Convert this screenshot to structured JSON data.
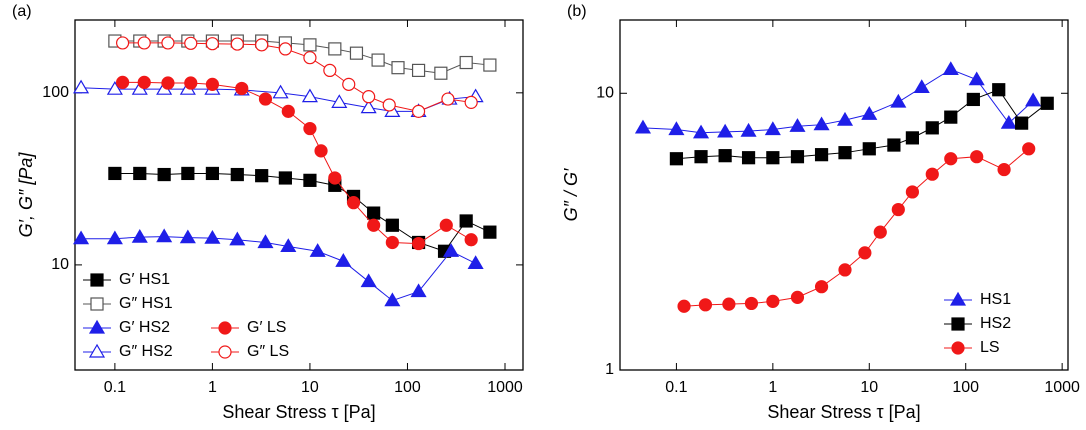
{
  "chart_data": [
    {
      "type": "line",
      "title": "(a)",
      "xlabel": "Shear Stress τ [Pa]",
      "ylabel": "G′, G″ [Pa]",
      "xscale": "log",
      "yscale": "log",
      "xlim": [
        0.039,
        1530
      ],
      "ylim": [
        2.45,
        265
      ],
      "xticks": [
        0.1,
        1,
        10,
        100,
        1000
      ],
      "yticks": [
        10,
        100
      ],
      "legend": "lower left",
      "legend_columns": 2,
      "series": [
        {
          "name": "G′ HS1",
          "color": "#000000",
          "marker": "square",
          "filled": true,
          "x": [
            0.1,
            0.18,
            0.32,
            0.56,
            1,
            1.8,
            3.2,
            5.6,
            10,
            18,
            28,
            45,
            70,
            130,
            240,
            400,
            700
          ],
          "values": [
            34,
            34,
            33.5,
            34,
            34,
            33.5,
            33,
            32,
            31,
            29,
            25,
            20,
            17,
            13.5,
            12,
            18,
            15.5
          ]
        },
        {
          "name": "G″ HS1",
          "color": "#555555",
          "marker": "square",
          "filled": false,
          "x": [
            0.1,
            0.18,
            0.32,
            0.56,
            1,
            1.8,
            3.2,
            5.6,
            10,
            18,
            30,
            50,
            80,
            130,
            220,
            400,
            700
          ],
          "values": [
            200,
            200,
            200,
            200,
            200,
            200,
            200,
            195,
            190,
            180,
            170,
            155,
            140,
            135,
            130,
            150,
            145
          ]
        },
        {
          "name": "G′ HS2",
          "color": "#1f1fe8",
          "marker": "triangle",
          "filled": true,
          "x": [
            0.045,
            0.1,
            0.18,
            0.32,
            0.56,
            1,
            1.8,
            3.5,
            6,
            12,
            22,
            40,
            70,
            130,
            280,
            500
          ],
          "values": [
            14.2,
            14.2,
            14.5,
            14.6,
            14.4,
            14.3,
            14,
            13.5,
            12.8,
            12,
            10.5,
            8,
            6.2,
            7,
            12,
            10.2
          ]
        },
        {
          "name": "G″ HS2",
          "color": "#1f1fe8",
          "marker": "triangle",
          "filled": false,
          "x": [
            0.045,
            0.1,
            0.18,
            0.32,
            0.56,
            1,
            2,
            5,
            10,
            20,
            40,
            70,
            130,
            270,
            500
          ],
          "values": [
            107,
            105,
            105,
            105,
            105,
            105,
            104,
            100,
            95,
            88,
            82,
            78,
            78,
            92,
            95
          ]
        },
        {
          "name": "G′ LS",
          "color": "#f01818",
          "marker": "circle",
          "filled": true,
          "x": [
            0.12,
            0.2,
            0.35,
            0.6,
            1,
            2,
            3.5,
            6,
            10,
            13,
            18,
            28,
            45,
            70,
            130,
            250,
            450
          ],
          "values": [
            115,
            115,
            114,
            114,
            112,
            106,
            92,
            78,
            62,
            46,
            32,
            23,
            17,
            13.5,
            13.3,
            17,
            14
          ]
        },
        {
          "name": "G″ LS",
          "color": "#f01818",
          "marker": "circle",
          "filled": false,
          "x": [
            0.12,
            0.2,
            0.35,
            0.6,
            1,
            1.8,
            3.2,
            5.6,
            10,
            16,
            25,
            40,
            65,
            130,
            260,
            450
          ],
          "values": [
            195,
            195,
            195,
            194,
            193,
            192,
            190,
            180,
            160,
            135,
            112,
            95,
            85,
            78,
            92,
            88
          ]
        }
      ]
    },
    {
      "type": "line",
      "title": "(b)",
      "xlabel": "Shear Stress τ [Pa]",
      "ylabel": "G″ / G′",
      "xscale": "log",
      "yscale": "log",
      "xlim": [
        0.026,
        1150
      ],
      "ylim": [
        1,
        18.4
      ],
      "xticks": [
        0.1,
        1,
        10,
        100,
        1000
      ],
      "yticks": [
        1,
        10
      ],
      "legend": "lower right",
      "legend_columns": 1,
      "series": [
        {
          "name": "HS1",
          "color": "#1f1fe8",
          "marker": "triangle",
          "filled": true,
          "x": [
            0.045,
            0.1,
            0.18,
            0.32,
            0.56,
            1,
            1.8,
            3.2,
            5.6,
            10,
            20,
            35,
            70,
            130,
            280,
            500
          ],
          "values": [
            7.5,
            7.4,
            7.2,
            7.25,
            7.3,
            7.4,
            7.6,
            7.7,
            8,
            8.4,
            9.3,
            10.5,
            12.2,
            11.2,
            7.8,
            9.4
          ]
        },
        {
          "name": "HS2",
          "color": "#000000",
          "marker": "square",
          "filled": true,
          "x": [
            0.1,
            0.18,
            0.32,
            0.56,
            1,
            1.8,
            3.2,
            5.6,
            10,
            18,
            28,
            45,
            70,
            120,
            220,
            380,
            700
          ],
          "values": [
            5.8,
            5.9,
            5.95,
            5.85,
            5.85,
            5.9,
            6,
            6.1,
            6.3,
            6.5,
            6.9,
            7.5,
            8.2,
            9.5,
            10.3,
            7.8,
            9.2
          ]
        },
        {
          "name": "LS",
          "color": "#f01818",
          "marker": "circle",
          "filled": true,
          "x": [
            0.12,
            0.2,
            0.35,
            0.6,
            1,
            1.8,
            3.2,
            5.6,
            9,
            13,
            20,
            28,
            45,
            70,
            130,
            250,
            450
          ],
          "values": [
            1.7,
            1.72,
            1.73,
            1.74,
            1.77,
            1.83,
            2,
            2.3,
            2.65,
            3.15,
            3.8,
            4.4,
            5.1,
            5.8,
            5.9,
            5.3,
            6.3
          ]
        }
      ]
    }
  ]
}
